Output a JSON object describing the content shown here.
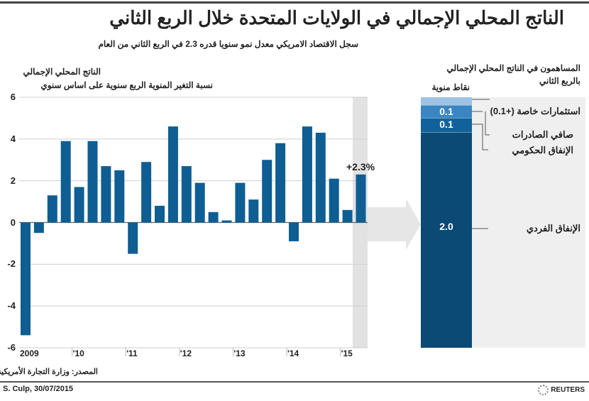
{
  "header": {
    "title": "الناتج المحلي الإجمالي في الولايات المتحدة خلال الربع الثاني",
    "subtitle": "سجل الاقتصاد الامريكي معدل نمو سنويا قدره 2.3 في الربع الثاني من العام"
  },
  "chart_data": [
    {
      "type": "bar",
      "title": "الناتج المحلي الإجمالي",
      "subtitle": "نسبة التغير المنوية الربع سنوية على اساس سنوي",
      "ylim": [
        -6,
        6
      ],
      "yticks": [
        "6",
        "4",
        "2",
        "0",
        "-2",
        "-4",
        "-6"
      ],
      "ytick_values": [
        6,
        4,
        2,
        0,
        -2,
        -4,
        -6
      ],
      "xtick_labels": [
        "2009",
        "'10",
        "'11",
        "'12",
        "'13",
        "'14",
        "'15"
      ],
      "grid": true,
      "color": "#0e5e93",
      "highlight_color": "#e2e2e2",
      "categories": [
        "2009Q1",
        "2009Q2",
        "2009Q3",
        "2009Q4",
        "2010Q1",
        "2010Q2",
        "2010Q3",
        "2010Q4",
        "2011Q1",
        "2011Q2",
        "2011Q3",
        "2011Q4",
        "2012Q1",
        "2012Q2",
        "2012Q3",
        "2012Q4",
        "2013Q1",
        "2013Q2",
        "2013Q3",
        "2013Q4",
        "2014Q1",
        "2014Q2",
        "2014Q3",
        "2014Q4",
        "2015Q1",
        "2015Q2"
      ],
      "values": [
        -5.4,
        -0.5,
        1.3,
        3.9,
        1.7,
        3.9,
        2.7,
        2.5,
        -1.5,
        2.9,
        0.8,
        4.6,
        2.7,
        1.9,
        0.5,
        0.1,
        1.9,
        1.1,
        3.0,
        3.8,
        -0.9,
        4.6,
        4.3,
        2.1,
        0.6,
        2.3
      ],
      "annotation": "+2.3%"
    },
    {
      "type": "stacked-bar",
      "title": "المساهمون في الناتج المحلي الإجمالي",
      "title_line2": "بالربع الثاني",
      "unit_label": "نقاط منوية",
      "segments": [
        {
          "name": "الإنفاق الفردي",
          "value_label": "2.0",
          "color": "#0b4a75"
        },
        {
          "name": "الإنفاق الحكومي",
          "value_label": "0.1",
          "color": "#11629a"
        },
        {
          "name": "صافي الصادرات",
          "value_label": "0.1",
          "color": "#3a86c4"
        },
        {
          "name": "استثمارات خاصة (+0.1)",
          "value_label": "",
          "color": "#9fc3e6"
        }
      ]
    }
  ],
  "footer": {
    "source": "المصدر: وزارة التجارة الأمريكية",
    "credit": "S. Culp, 30/07/2015",
    "brand": "REUTERS"
  }
}
